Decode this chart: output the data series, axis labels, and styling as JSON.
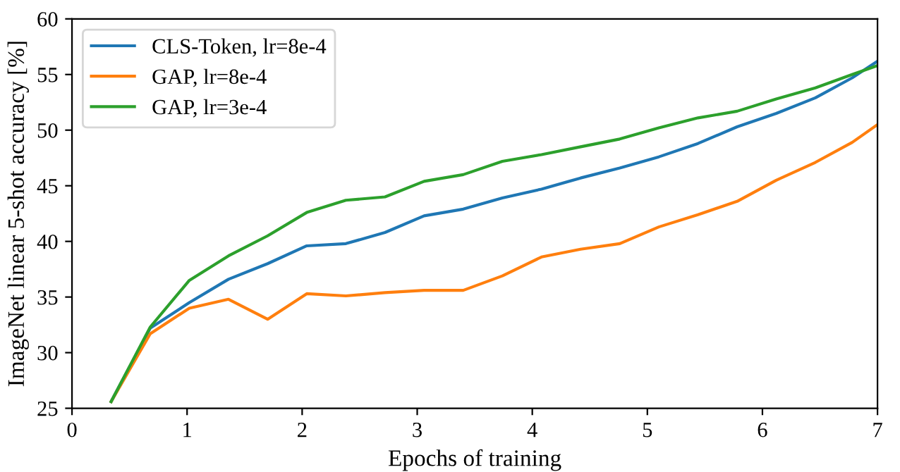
{
  "chart_data": {
    "type": "line",
    "xlabel": "Epochs of training",
    "ylabel": "ImageNet linear 5-shot accuracy [%]",
    "x": [
      0.34,
      0.68,
      1.02,
      1.36,
      1.7,
      2.04,
      2.38,
      2.72,
      3.06,
      3.4,
      3.74,
      4.08,
      4.42,
      4.76,
      5.1,
      5.44,
      5.78,
      6.12,
      6.46,
      6.78,
      7.0
    ],
    "series": [
      {
        "name": "CLS-Token, lr=8e-4",
        "color": "#1f77b4",
        "values": [
          25.6,
          32.2,
          34.5,
          36.6,
          38.0,
          39.6,
          39.8,
          40.8,
          42.3,
          42.9,
          43.9,
          44.7,
          45.7,
          46.6,
          47.6,
          48.8,
          50.3,
          51.5,
          52.9,
          54.7,
          56.2
        ]
      },
      {
        "name": "GAP, lr=8e-4",
        "color": "#ff7f0e",
        "values": [
          25.6,
          31.7,
          34.0,
          34.8,
          33.0,
          35.3,
          35.1,
          35.4,
          35.6,
          35.6,
          36.9,
          38.6,
          39.3,
          39.8,
          41.3,
          42.4,
          43.6,
          45.5,
          47.1,
          48.9,
          50.5
        ]
      },
      {
        "name": "GAP, lr=3e-4",
        "color": "#2ca02c",
        "values": [
          25.6,
          32.3,
          36.5,
          38.7,
          40.5,
          42.6,
          43.7,
          44.0,
          45.4,
          46.0,
          47.2,
          47.8,
          48.5,
          49.2,
          50.2,
          51.1,
          51.7,
          52.8,
          53.8,
          55.0,
          55.8
        ]
      }
    ],
    "xlim": [
      0,
      7
    ],
    "xticks": [
      0,
      1,
      2,
      3,
      4,
      5,
      6,
      7
    ],
    "ylim": [
      25,
      60
    ],
    "yticks": [
      25,
      30,
      35,
      40,
      45,
      50,
      55,
      60
    ],
    "legend": "top left",
    "grid": false
  }
}
